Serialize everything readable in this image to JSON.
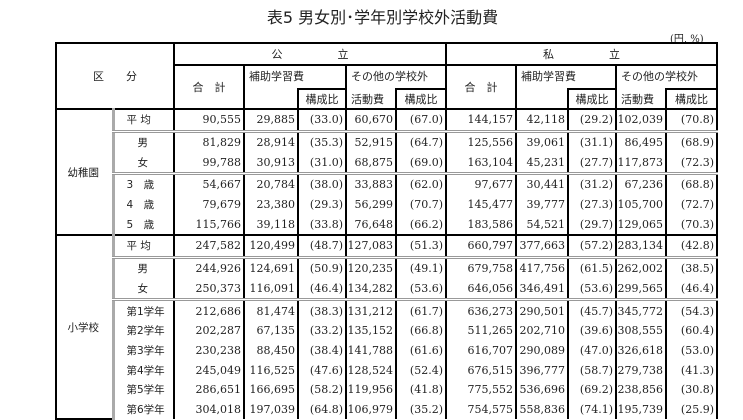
{
  "title": "表5  男女別･学年別学校外活動費",
  "unit": "(円, %)",
  "header": {
    "category": "区　　分",
    "public": "公　　　　　立",
    "private": "私　　　　　立",
    "total": "合　計",
    "tutoring": "補助学習費",
    "other": "その他の学校外",
    "other2": "活動費",
    "ratio": "構成比"
  },
  "groups": [
    {
      "name": "幼稚園",
      "rows": [
        {
          "label": "平 均",
          "v": [
            "90,555",
            "29,885",
            "(33.0)",
            "60,670",
            "(67.0)",
            "144,157",
            "42,118",
            "(29.2)",
            "102,039",
            "(70.8)"
          ]
        },
        {
          "label": "男",
          "v": [
            "81,829",
            "28,914",
            "(35.3)",
            "52,915",
            "(64.7)",
            "125,556",
            "39,061",
            "(31.1)",
            "86,495",
            "(68.9)"
          ]
        },
        {
          "label": "女",
          "v": [
            "99,788",
            "30,913",
            "(31.0)",
            "68,875",
            "(69.0)",
            "163,104",
            "45,231",
            "(27.7)",
            "117,873",
            "(72.3)"
          ]
        },
        {
          "label": "3　歳",
          "v": [
            "54,667",
            "20,784",
            "(38.0)",
            "33,883",
            "(62.0)",
            "97,677",
            "30,441",
            "(31.2)",
            "67,236",
            "(68.8)"
          ]
        },
        {
          "label": "4　歳",
          "v": [
            "79,679",
            "23,380",
            "(29.3)",
            "56,299",
            "(70.7)",
            "145,477",
            "39,777",
            "(27.3)",
            "105,700",
            "(72.7)"
          ]
        },
        {
          "label": "5　歳",
          "v": [
            "115,766",
            "39,118",
            "(33.8)",
            "76,648",
            "(66.2)",
            "183,586",
            "54,521",
            "(29.7)",
            "129,065",
            "(70.3)"
          ]
        }
      ]
    },
    {
      "name": "小学校",
      "rows": [
        {
          "label": "平 均",
          "v": [
            "247,582",
            "120,499",
            "(48.7)",
            "127,083",
            "(51.3)",
            "660,797",
            "377,663",
            "(57.2)",
            "283,134",
            "(42.8)"
          ]
        },
        {
          "label": "男",
          "v": [
            "244,926",
            "124,691",
            "(50.9)",
            "120,235",
            "(49.1)",
            "679,758",
            "417,756",
            "(61.5)",
            "262,002",
            "(38.5)"
          ]
        },
        {
          "label": "女",
          "v": [
            "250,373",
            "116,091",
            "(46.4)",
            "134,282",
            "(53.6)",
            "646,056",
            "346,491",
            "(53.6)",
            "299,565",
            "(46.4)"
          ]
        },
        {
          "label": "第1学年",
          "v": [
            "212,686",
            "81,474",
            "(38.3)",
            "131,212",
            "(61.7)",
            "636,273",
            "290,501",
            "(45.7)",
            "345,772",
            "(54.3)"
          ]
        },
        {
          "label": "第2学年",
          "v": [
            "202,287",
            "67,135",
            "(33.2)",
            "135,152",
            "(66.8)",
            "511,265",
            "202,710",
            "(39.6)",
            "308,555",
            "(60.4)"
          ]
        },
        {
          "label": "第3学年",
          "v": [
            "230,238",
            "88,450",
            "(38.4)",
            "141,788",
            "(61.6)",
            "616,707",
            "290,089",
            "(47.0)",
            "326,618",
            "(53.0)"
          ]
        },
        {
          "label": "第4学年",
          "v": [
            "245,049",
            "116,525",
            "(47.6)",
            "128,524",
            "(52.4)",
            "676,515",
            "396,777",
            "(58.7)",
            "279,738",
            "(41.3)"
          ]
        },
        {
          "label": "第5学年",
          "v": [
            "286,651",
            "166,695",
            "(58.2)",
            "119,956",
            "(41.8)",
            "775,552",
            "536,696",
            "(69.2)",
            "238,856",
            "(30.8)"
          ]
        },
        {
          "label": "第6学年",
          "v": [
            "304,018",
            "197,039",
            "(64.8)",
            "106,979",
            "(35.2)",
            "754,575",
            "558,836",
            "(74.1)",
            "195,739",
            "(25.9)"
          ]
        }
      ]
    }
  ]
}
